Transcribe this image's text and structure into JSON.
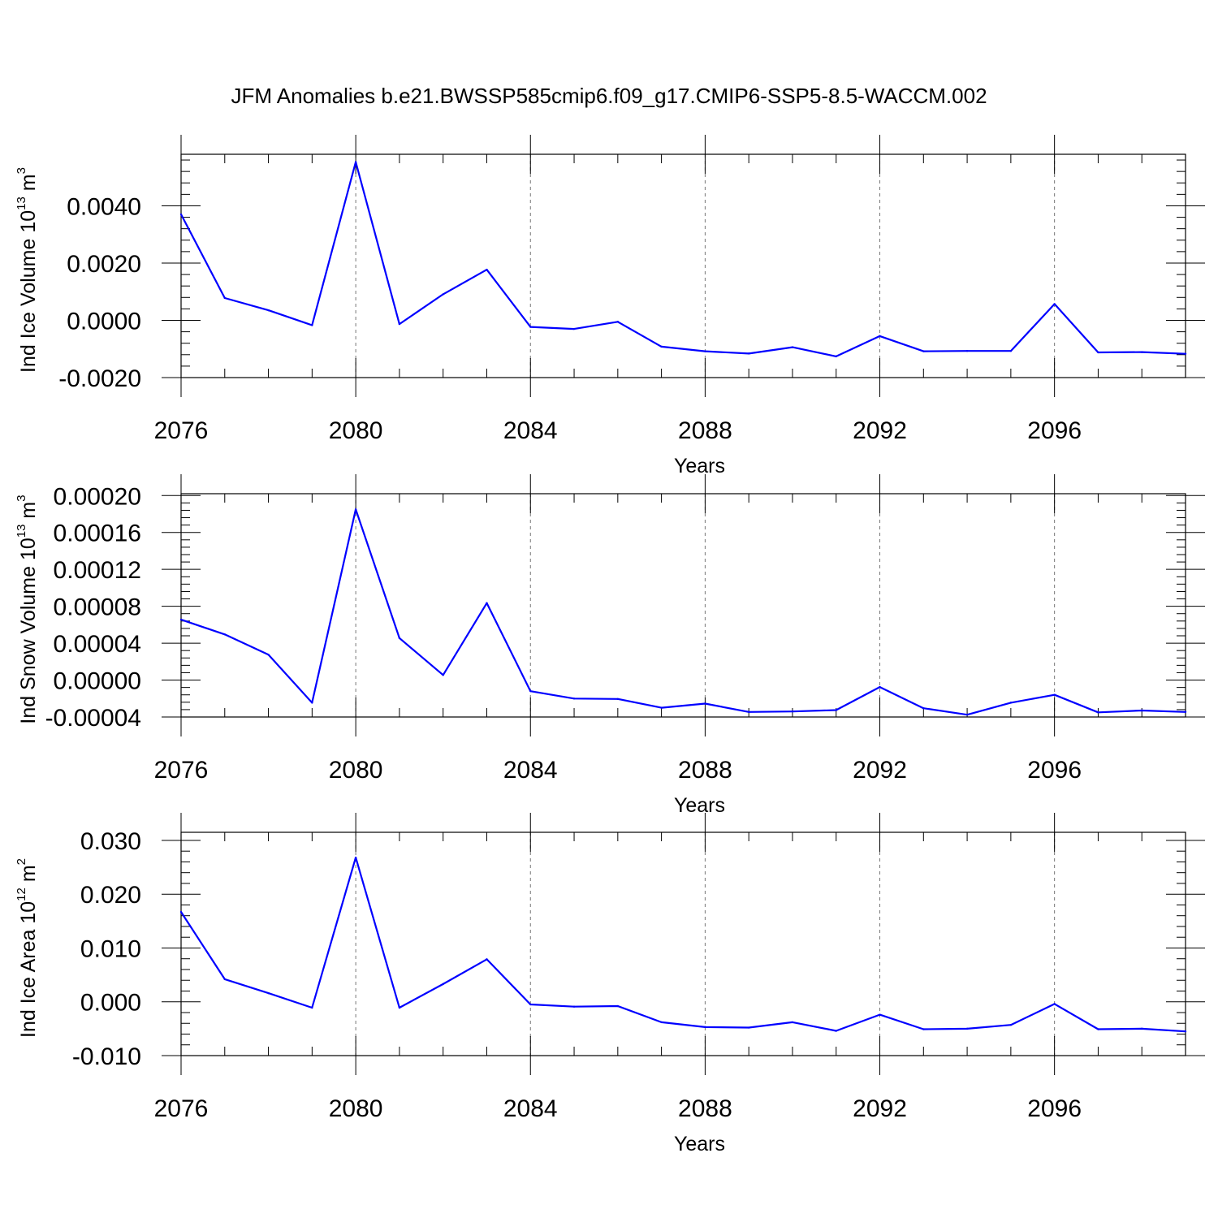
{
  "title": "JFM Anomalies b.e21.BWSSP585cmip6.f09_g17.CMIP6-SSP5-8.5-WACCM.002",
  "colors": {
    "line": "#0000ff",
    "axis": "#000000",
    "grid": "#777777"
  },
  "chart_data": [
    {
      "type": "line",
      "xlabel": "Years",
      "ylabel_main": "Ind Ice Volume 10",
      "ylabel_exp": "13",
      "ylabel_unit": " m",
      "ylabel_unit_exp": "3",
      "xlim": [
        2076,
        2099
      ],
      "ylim": [
        -0.002,
        0.0058
      ],
      "x_ticks": [
        2076,
        2080,
        2084,
        2088,
        2092,
        2096
      ],
      "x_tick_labels": [
        "2076",
        "2080",
        "2084",
        "2088",
        "2092",
        "2096"
      ],
      "y_ticks": [
        -0.002,
        0.0,
        0.002,
        0.004
      ],
      "y_tick_labels": [
        "-0.0020",
        "0.0000",
        "0.0020",
        "0.0040"
      ],
      "grid_x": true,
      "x": [
        2076,
        2077,
        2078,
        2079,
        2080,
        2081,
        2082,
        2083,
        2084,
        2085,
        2086,
        2087,
        2088,
        2089,
        2090,
        2091,
        2092,
        2093,
        2094,
        2095,
        2096,
        2097,
        2098,
        2099
      ],
      "values": [
        0.0037,
        0.00078,
        0.00035,
        -0.00017,
        0.00553,
        -0.00013,
        0.00091,
        0.00177,
        -0.00023,
        -0.0003,
        -5e-05,
        -0.00092,
        -0.00108,
        -0.00116,
        -0.00094,
        -0.00126,
        -0.00055,
        -0.00108,
        -0.00107,
        -0.00107,
        0.00057,
        -0.00112,
        -0.00111,
        -0.00117
      ]
    },
    {
      "type": "line",
      "xlabel": "Years",
      "ylabel_main": "Ind Snow Volume 10",
      "ylabel_exp": "13",
      "ylabel_unit": " m",
      "ylabel_unit_exp": "3",
      "xlim": [
        2076,
        2099
      ],
      "ylim": [
        -4e-05,
        0.000202
      ],
      "x_ticks": [
        2076,
        2080,
        2084,
        2088,
        2092,
        2096
      ],
      "x_tick_labels": [
        "2076",
        "2080",
        "2084",
        "2088",
        "2092",
        "2096"
      ],
      "y_ticks": [
        -4e-05,
        0.0,
        4e-05,
        8e-05,
        0.00012,
        0.00016,
        0.0002
      ],
      "y_tick_labels": [
        "-0.00004",
        "0.00000",
        "0.00004",
        "0.00008",
        "0.00012",
        "0.00016",
        "0.00020"
      ],
      "grid_x": true,
      "x": [
        2076,
        2077,
        2078,
        2079,
        2080,
        2081,
        2082,
        2083,
        2084,
        2085,
        2086,
        2087,
        2088,
        2089,
        2090,
        2091,
        2092,
        2093,
        2094,
        2095,
        2096,
        2097,
        2098,
        2099
      ],
      "values": [
        6.55e-05,
        4.95e-05,
        2.75e-05,
        -2.45e-05,
        0.000185,
        4.55e-05,
        5.5e-06,
        8.35e-05,
        -1.2e-05,
        -2e-05,
        -2.05e-05,
        -3e-05,
        -2.55e-05,
        -3.45e-05,
        -3.4e-05,
        -3.25e-05,
        -7.5e-06,
        -3.05e-05,
        -3.75e-05,
        -2.45e-05,
        -1.6e-05,
        -3.5e-05,
        -3.3e-05,
        -3.45e-05
      ]
    },
    {
      "type": "line",
      "xlabel": "Years",
      "ylabel_main": "Ind Ice Area 10",
      "ylabel_exp": "12",
      "ylabel_unit": " m",
      "ylabel_unit_exp": "2",
      "xlim": [
        2076,
        2099
      ],
      "ylim": [
        -0.01,
        0.0315
      ],
      "x_ticks": [
        2076,
        2080,
        2084,
        2088,
        2092,
        2096
      ],
      "x_tick_labels": [
        "2076",
        "2080",
        "2084",
        "2088",
        "2092",
        "2096"
      ],
      "y_ticks": [
        -0.01,
        0.0,
        0.01,
        0.02,
        0.03
      ],
      "y_tick_labels": [
        "-0.010",
        "0.000",
        "0.010",
        "0.020",
        "0.030"
      ],
      "grid_x": true,
      "x": [
        2076,
        2077,
        2078,
        2079,
        2080,
        2081,
        2082,
        2083,
        2084,
        2085,
        2086,
        2087,
        2088,
        2089,
        2090,
        2091,
        2092,
        2093,
        2094,
        2095,
        2096,
        2097,
        2098,
        2099
      ],
      "values": [
        0.0167,
        0.0042,
        0.0016,
        -0.0011,
        0.0268,
        -0.0011,
        0.0033,
        0.0079,
        -0.0005,
        -0.0009,
        -0.0008,
        -0.0038,
        -0.0047,
        -0.0048,
        -0.0038,
        -0.0054,
        -0.0024,
        -0.0051,
        -0.005,
        -0.0043,
        -0.0004,
        -0.0051,
        -0.005,
        -0.0055
      ]
    }
  ]
}
